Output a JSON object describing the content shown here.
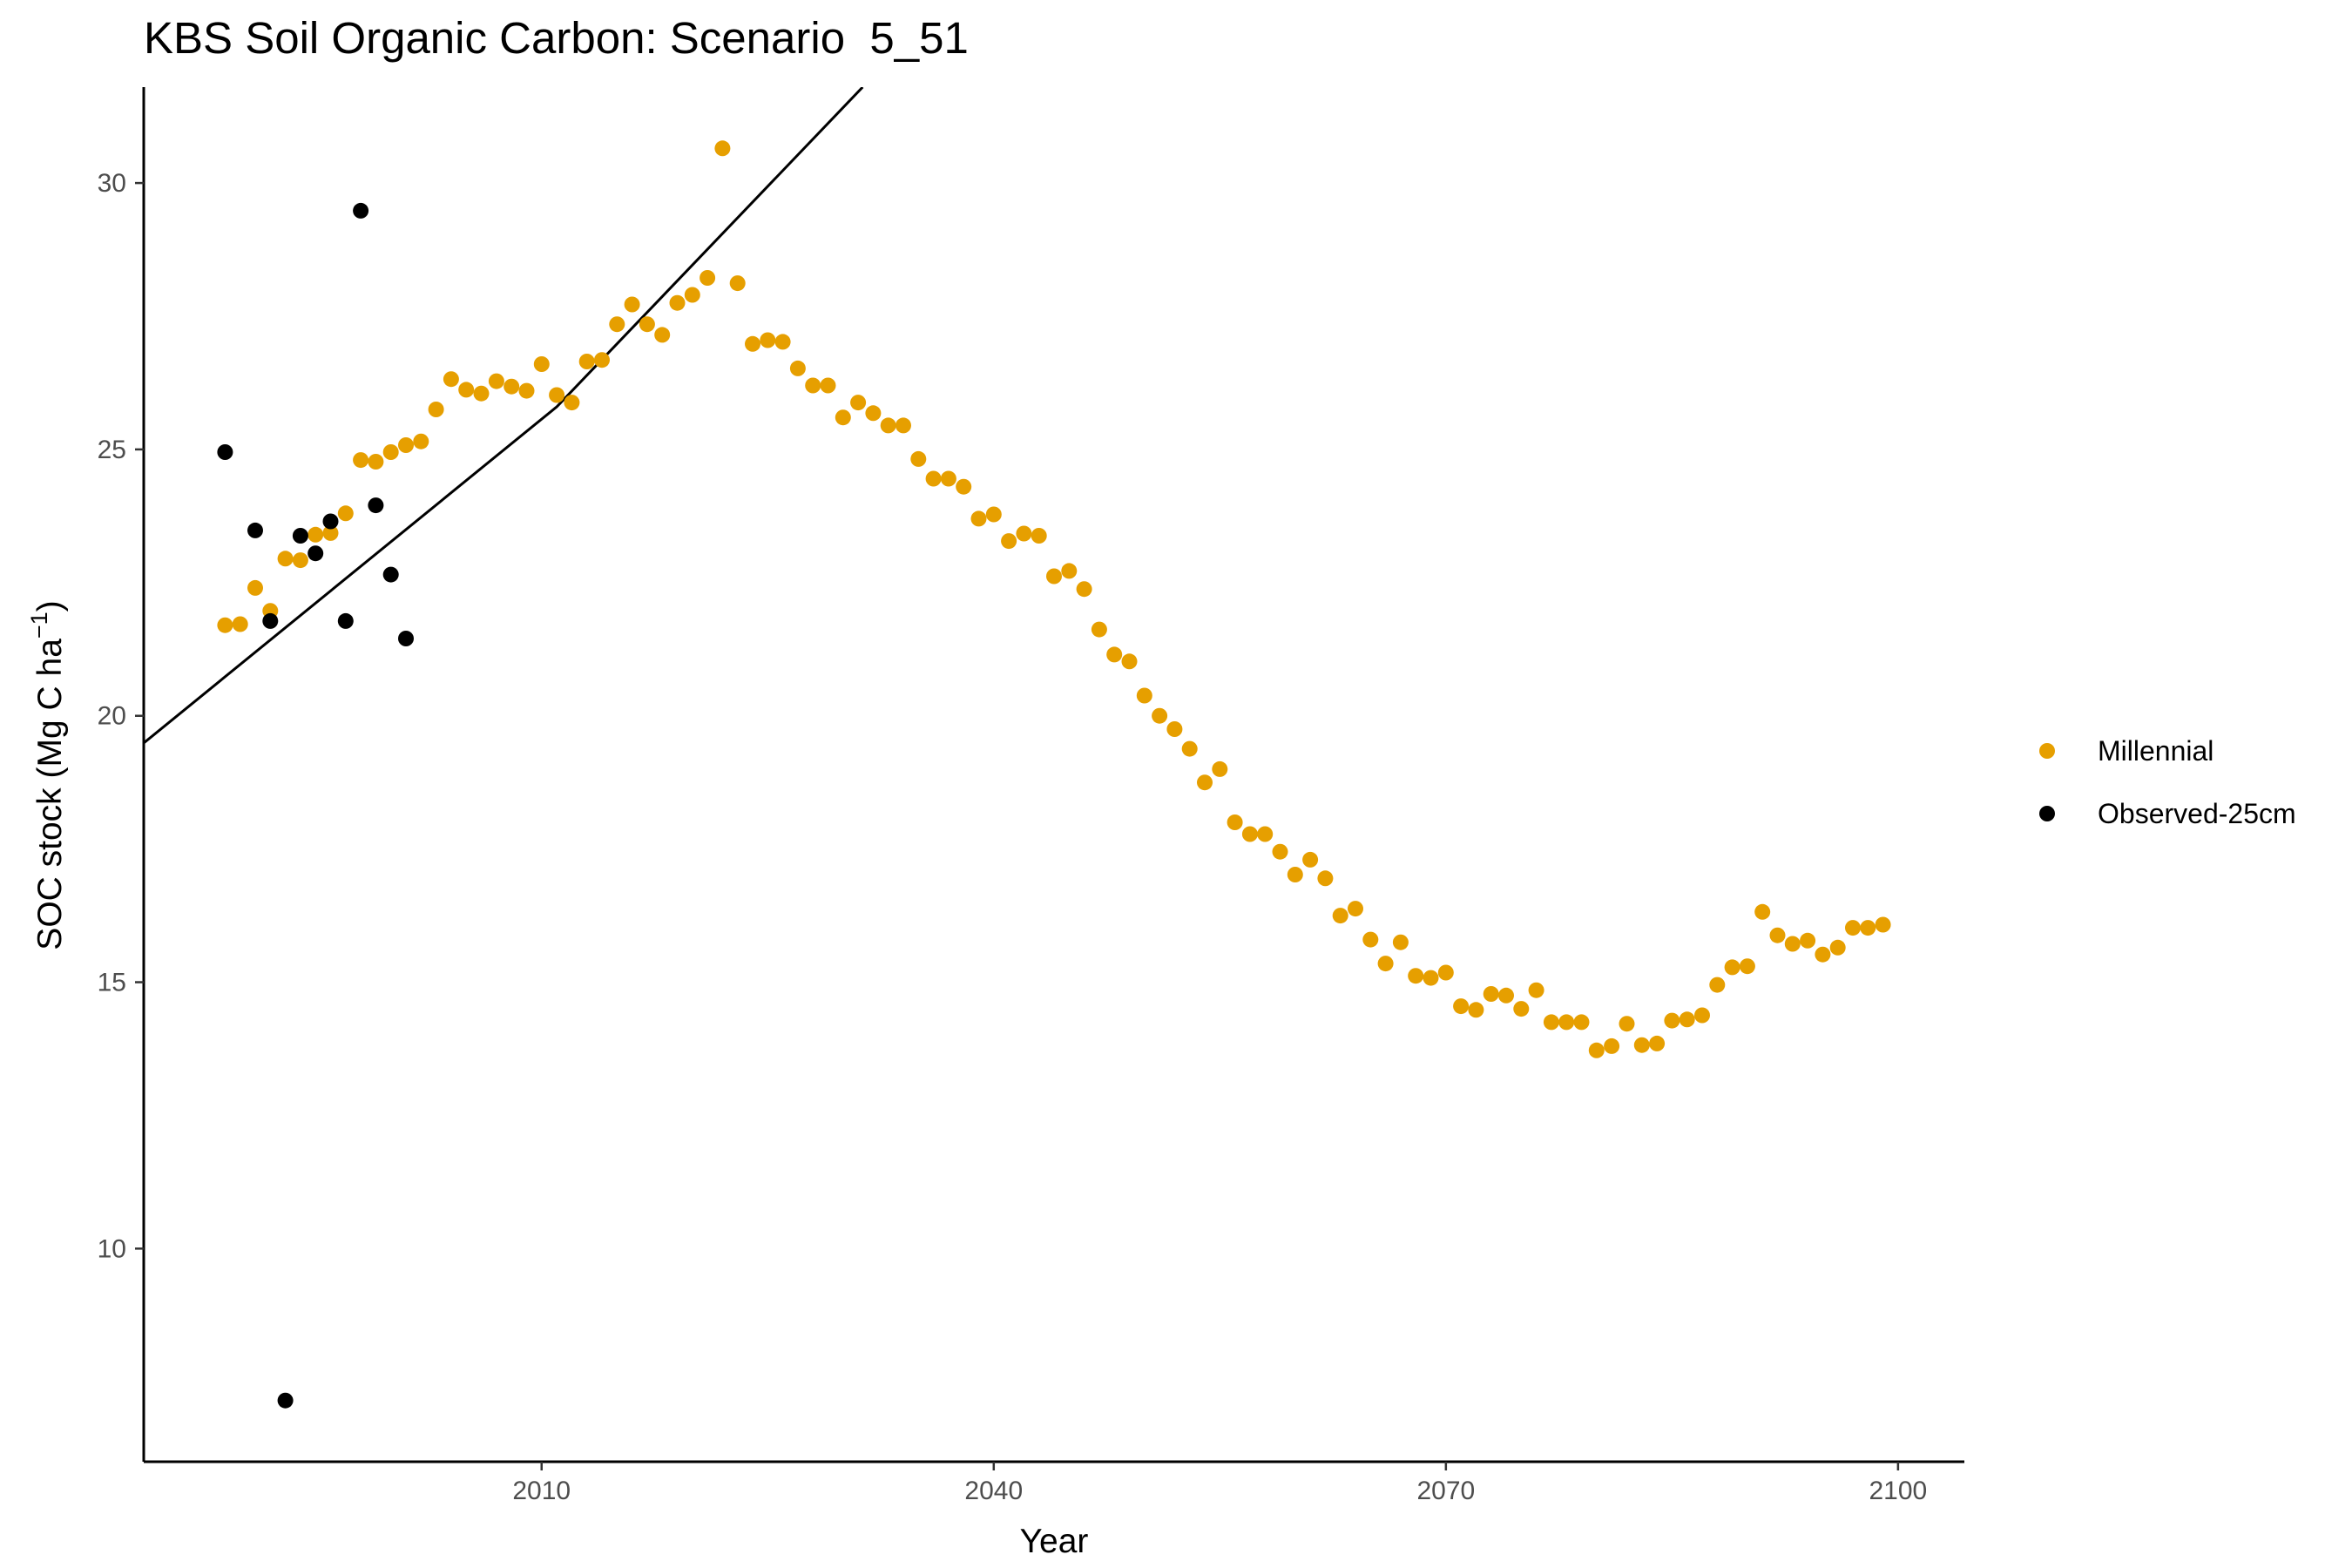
{
  "chart_data": {
    "type": "scatter",
    "title": "KBS Soil Organic Carbon: Scenario  5_51",
    "xlabel": "Year",
    "ylabel": "SOC stock (Mg C ha",
    "ylabel_sup": "−1",
    "ylabel_close": ")",
    "xlim": [
      1983.6,
      2104.4
    ],
    "ylim": [
      6.0,
      31.8
    ],
    "x_ticks": [
      2010,
      2040,
      2070,
      2100
    ],
    "y_ticks": [
      10,
      15,
      20,
      25,
      30
    ],
    "grid": false,
    "legend_position": "right",
    "trend_line": {
      "color": "#000000",
      "points": [
        [
          1983.6,
          19.49
        ],
        [
          2011.0,
          25.8
        ],
        [
          2031.3,
          31.8
        ]
      ]
    },
    "series": [
      {
        "name": "Millennial",
        "color": "#E69F00",
        "points": [
          [
            1989,
            21.7
          ],
          [
            1990,
            21.72
          ],
          [
            1991,
            22.4
          ],
          [
            1992,
            21.97
          ],
          [
            1993,
            22.95
          ],
          [
            1994,
            22.92
          ],
          [
            1995,
            23.4
          ],
          [
            1996,
            23.43
          ],
          [
            1997,
            23.8
          ],
          [
            1998,
            24.8
          ],
          [
            1999,
            24.77
          ],
          [
            2000,
            24.95
          ],
          [
            2001,
            25.08
          ],
          [
            2002,
            25.15
          ],
          [
            2003,
            25.75
          ],
          [
            2004,
            26.32
          ],
          [
            2005,
            26.12
          ],
          [
            2006,
            26.05
          ],
          [
            2007,
            26.28
          ],
          [
            2008,
            26.18
          ],
          [
            2009,
            26.1
          ],
          [
            2010,
            26.6
          ],
          [
            2011,
            26.02
          ],
          [
            2012,
            25.88
          ],
          [
            2013,
            26.65
          ],
          [
            2014,
            26.68
          ],
          [
            2015,
            27.35
          ],
          [
            2016,
            27.72
          ],
          [
            2017,
            27.35
          ],
          [
            2018,
            27.15
          ],
          [
            2019,
            27.75
          ],
          [
            2020,
            27.9
          ],
          [
            2021,
            28.22
          ],
          [
            2022,
            30.65
          ],
          [
            2023,
            28.12
          ],
          [
            2024,
            26.98
          ],
          [
            2025,
            27.05
          ],
          [
            2026,
            27.02
          ],
          [
            2027,
            26.52
          ],
          [
            2028,
            26.2
          ],
          [
            2029,
            26.2
          ],
          [
            2030,
            25.6
          ],
          [
            2031,
            25.88
          ],
          [
            2032,
            25.68
          ],
          [
            2033,
            25.45
          ],
          [
            2034,
            25.45
          ],
          [
            2035,
            24.82
          ],
          [
            2036,
            24.45
          ],
          [
            2037,
            24.45
          ],
          [
            2038,
            24.3
          ],
          [
            2039,
            23.7
          ],
          [
            2040,
            23.78
          ],
          [
            2041,
            23.28
          ],
          [
            2042,
            23.42
          ],
          [
            2043,
            23.38
          ],
          [
            2044,
            22.62
          ],
          [
            2045,
            22.72
          ],
          [
            2046,
            22.38
          ],
          [
            2047,
            21.62
          ],
          [
            2048,
            21.15
          ],
          [
            2049,
            21.02
          ],
          [
            2050,
            20.38
          ],
          [
            2051,
            20.0
          ],
          [
            2052,
            19.75
          ],
          [
            2053,
            19.38
          ],
          [
            2054,
            18.75
          ],
          [
            2055,
            19.0
          ],
          [
            2056,
            18.0
          ],
          [
            2057,
            17.78
          ],
          [
            2058,
            17.78
          ],
          [
            2059,
            17.45
          ],
          [
            2060,
            17.02
          ],
          [
            2061,
            17.3
          ],
          [
            2062,
            16.95
          ],
          [
            2063,
            16.25
          ],
          [
            2064,
            16.38
          ],
          [
            2065,
            15.8
          ],
          [
            2066,
            15.35
          ],
          [
            2067,
            15.75
          ],
          [
            2068,
            15.12
          ],
          [
            2069,
            15.08
          ],
          [
            2070,
            15.18
          ],
          [
            2071,
            14.55
          ],
          [
            2072,
            14.48
          ],
          [
            2073,
            14.78
          ],
          [
            2074,
            14.75
          ],
          [
            2075,
            14.5
          ],
          [
            2076,
            14.85
          ],
          [
            2077,
            14.25
          ],
          [
            2078,
            14.25
          ],
          [
            2079,
            14.25
          ],
          [
            2080,
            13.72
          ],
          [
            2081,
            13.8
          ],
          [
            2082,
            14.22
          ],
          [
            2083,
            13.82
          ],
          [
            2084,
            13.85
          ],
          [
            2085,
            14.28
          ],
          [
            2086,
            14.3
          ],
          [
            2087,
            14.38
          ],
          [
            2088,
            14.95
          ],
          [
            2089,
            15.28
          ],
          [
            2090,
            15.3
          ],
          [
            2091,
            16.32
          ],
          [
            2092,
            15.88
          ],
          [
            2093,
            15.72
          ],
          [
            2094,
            15.78
          ],
          [
            2095,
            15.52
          ],
          [
            2096,
            15.65
          ],
          [
            2097,
            16.02
          ],
          [
            2098,
            16.02
          ],
          [
            2099,
            16.08
          ]
        ]
      },
      {
        "name": "Observed-25cm",
        "color": "#000000",
        "points": [
          [
            1989,
            24.95
          ],
          [
            1991,
            23.48
          ],
          [
            1992,
            21.78
          ],
          [
            1993,
            7.15
          ],
          [
            1994,
            23.38
          ],
          [
            1995,
            23.05
          ],
          [
            1996,
            23.65
          ],
          [
            1997,
            21.78
          ],
          [
            1998,
            29.48
          ],
          [
            1999,
            23.95
          ],
          [
            2000,
            22.65
          ],
          [
            2001,
            21.45
          ]
        ]
      }
    ]
  }
}
